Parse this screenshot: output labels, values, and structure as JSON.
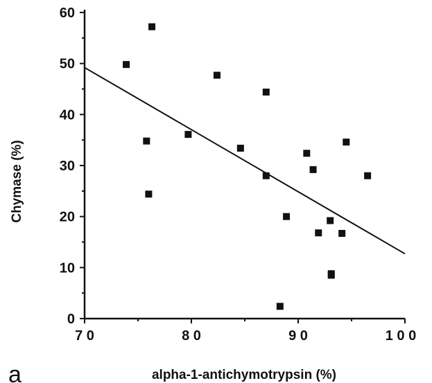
{
  "chart_data": {
    "type": "scatter",
    "xlabel": "alpha-1-antichymotrypsin (%)",
    "ylabel": "Chymase (%)",
    "panel_label": "a",
    "xlim": [
      70,
      100
    ],
    "ylim": [
      0,
      60
    ],
    "x_ticks": [
      70,
      80,
      90,
      100
    ],
    "x_tick_labels": [
      "7 0",
      "8 0",
      "9 0",
      "1 0 0"
    ],
    "y_ticks": [
      0,
      10,
      20,
      30,
      40,
      50,
      60
    ],
    "y_tick_labels": [
      "0",
      "10",
      "20",
      "30",
      "40",
      "50",
      "60"
    ],
    "grid": false,
    "marker": "square",
    "points": [
      {
        "x": 76.3,
        "y": 57.2
      },
      {
        "x": 73.9,
        "y": 49.8
      },
      {
        "x": 82.4,
        "y": 47.7
      },
      {
        "x": 87.0,
        "y": 44.4
      },
      {
        "x": 79.7,
        "y": 36.1
      },
      {
        "x": 75.8,
        "y": 34.8
      },
      {
        "x": 94.5,
        "y": 34.6
      },
      {
        "x": 84.6,
        "y": 33.4
      },
      {
        "x": 90.8,
        "y": 32.4
      },
      {
        "x": 91.4,
        "y": 29.2
      },
      {
        "x": 87.0,
        "y": 28.0
      },
      {
        "x": 96.5,
        "y": 28.0
      },
      {
        "x": 76.0,
        "y": 24.4
      },
      {
        "x": 88.9,
        "y": 20.0
      },
      {
        "x": 93.0,
        "y": 19.2
      },
      {
        "x": 91.9,
        "y": 16.8
      },
      {
        "x": 94.1,
        "y": 16.7
      },
      {
        "x": 93.1,
        "y": 8.8
      },
      {
        "x": 93.1,
        "y": 8.5
      },
      {
        "x": 88.3,
        "y": 2.4
      }
    ],
    "regression_line": {
      "x": [
        70,
        100
      ],
      "y": [
        49.2,
        12.7
      ]
    }
  }
}
